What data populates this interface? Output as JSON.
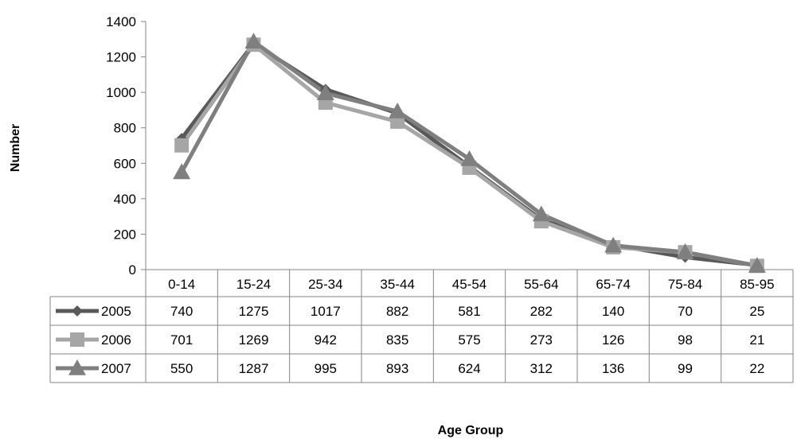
{
  "chart_data": {
    "type": "line",
    "title": "",
    "xlabel": "Age Group",
    "ylabel": "Number",
    "ylim": [
      0,
      1400
    ],
    "yticks": [
      0,
      200,
      400,
      600,
      800,
      1000,
      1200,
      1400
    ],
    "grid": false,
    "legend": "data-table",
    "categories": [
      "0-14",
      "15-24",
      "25-34",
      "35-44",
      "45-54",
      "55-64",
      "65-74",
      "75-84",
      "85-95"
    ],
    "series": [
      {
        "name": "2005",
        "color": "#595959",
        "marker": "diamond",
        "values": [
          740,
          1275,
          1017,
          882,
          581,
          282,
          140,
          70,
          25
        ]
      },
      {
        "name": "2006",
        "color": "#a6a6a6",
        "marker": "square",
        "values": [
          701,
          1269,
          942,
          835,
          575,
          273,
          126,
          98,
          21
        ]
      },
      {
        "name": "2007",
        "color": "#7f7f7f",
        "marker": "triangle",
        "values": [
          550,
          1287,
          995,
          893,
          624,
          312,
          136,
          99,
          22
        ]
      }
    ]
  }
}
